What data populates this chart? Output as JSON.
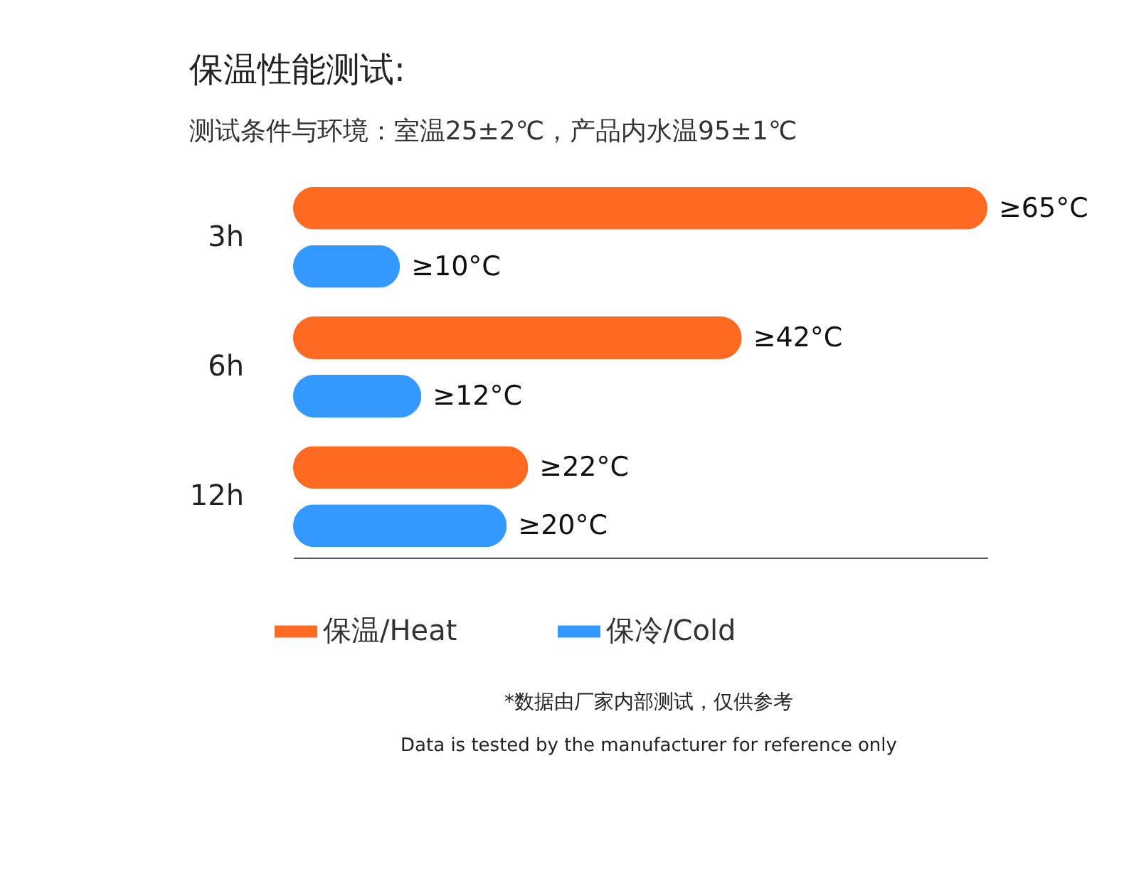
{
  "chart_data": {
    "type": "bar",
    "orientation": "horizontal",
    "title": "保温性能测试:",
    "subtitle": "测试条件与环境：室温25±2℃，产品内水温95±1℃",
    "categories": [
      "3h",
      "6h",
      "12h"
    ],
    "series": [
      {
        "name": "保温/Heat",
        "color": "#ff6a22",
        "values": [
          65,
          42,
          22
        ],
        "value_labels": [
          "≥65°C",
          "≥42°C",
          "≥22°C"
        ]
      },
      {
        "name": "保冷/Cold",
        "color": "#3399ff",
        "values": [
          10,
          12,
          20
        ],
        "value_labels": [
          "≥10°C",
          "≥12°C",
          "≥20°C"
        ]
      }
    ],
    "legend": "bottom left",
    "annotations": [
      "*数据由厂家内部测试，仅供参考",
      "Data is tested by the manufacturer for reference only"
    ]
  }
}
